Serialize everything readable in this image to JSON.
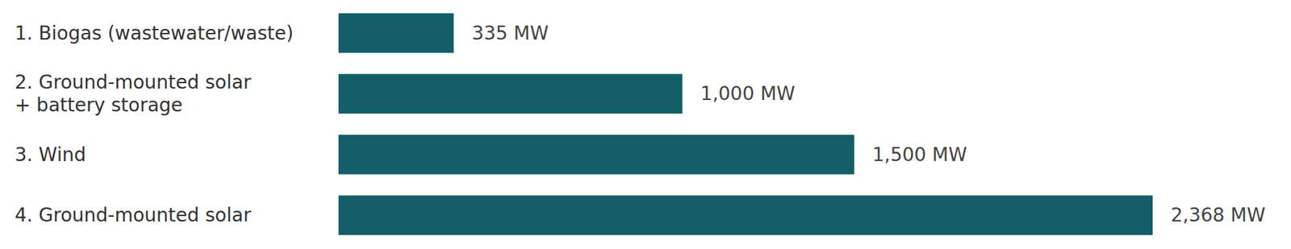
{
  "chart_data": {
    "type": "bar",
    "orientation": "horizontal",
    "categories": [
      "1. Biogas (wastewater/waste)",
      "2. Ground-mounted solar\n+ battery storage",
      "3. Wind",
      "4. Ground-mounted solar"
    ],
    "values": [
      335,
      1000,
      1500,
      2368
    ],
    "value_labels": [
      "335 MW",
      "1,000 MW",
      "1,500 MW",
      "2,368 MW"
    ],
    "color": "#135e66",
    "xlim": [
      0,
      2368
    ],
    "data_labels": true,
    "tick_labels": "y",
    "grid": false
  }
}
